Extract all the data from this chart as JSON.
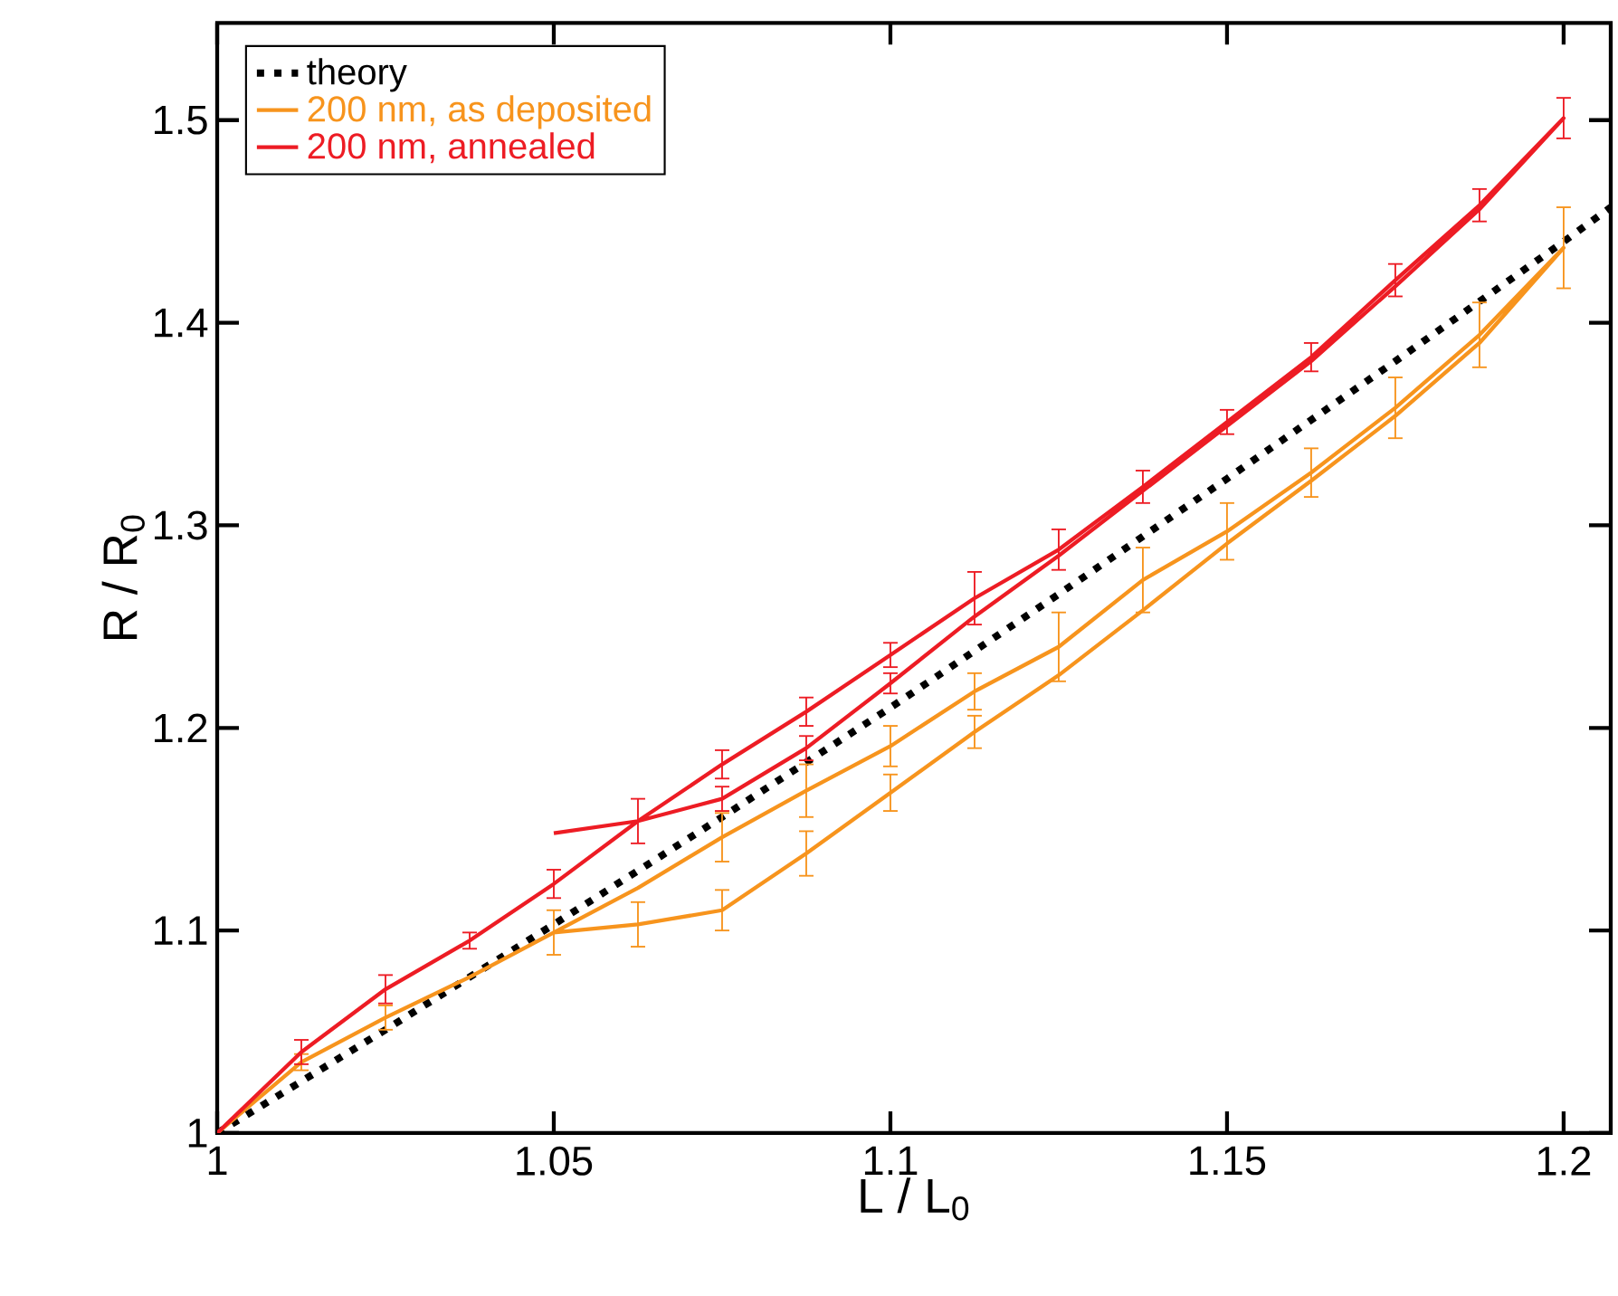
{
  "chart_data": {
    "type": "line",
    "xlabel": "L / L$_{0}$",
    "ylabel": "R / R$_{0}$",
    "xlim": [
      1,
      1.207
    ],
    "ylim": [
      1,
      1.548
    ],
    "xticks": [
      1,
      1.05,
      1.1,
      1.15,
      1.2
    ],
    "yticks": [
      1,
      1.1,
      1.2,
      1.3,
      1.4,
      1.5
    ],
    "grid": false,
    "legend": "top left",
    "marker": "none",
    "series": [
      {
        "name": "theory",
        "color": "#000000",
        "line_style": "dotted",
        "x": [
          1,
          1.025,
          1.05,
          1.075,
          1.1,
          1.125,
          1.15,
          1.175,
          1.2,
          1.207
        ],
        "values": [
          1,
          1.051,
          1.103,
          1.156,
          1.21,
          1.266,
          1.323,
          1.381,
          1.44,
          1.457
        ]
      },
      {
        "name": "200 nm, as deposited",
        "color": "#f7941d",
        "line_style": "solid",
        "x": [
          1,
          1.0125,
          1.025,
          1.0375,
          1.05,
          1.0625,
          1.075,
          1.0875,
          1.1,
          1.1125,
          1.125,
          1.1375,
          1.15,
          1.1625,
          1.175,
          1.1875,
          1.2,
          1.1875,
          1.175,
          1.1625,
          1.15,
          1.1375,
          1.125,
          1.1125,
          1.1,
          1.0875,
          1.075,
          1.0625,
          1.05
        ],
        "values": [
          1,
          1.035,
          1.057,
          1.077,
          1.099,
          1.121,
          1.146,
          1.169,
          1.191,
          1.218,
          1.24,
          1.273,
          1.297,
          1.326,
          1.358,
          1.394,
          1.437,
          1.39,
          1.354,
          1.322,
          1.291,
          1.258,
          1.226,
          1.198,
          1.168,
          1.138,
          1.11,
          1.103,
          1.099
        ],
        "errors": [
          null,
          0.004,
          0.006,
          null,
          0.011,
          null,
          0.012,
          0.013,
          0.01,
          0.009,
          0.017,
          0.016,
          0.014,
          0.012,
          0.015,
          0.016,
          0.02,
          null,
          null,
          null,
          null,
          null,
          null,
          0.008,
          0.009,
          0.011,
          0.01,
          0.011,
          null
        ]
      },
      {
        "name": "200 nm, annealed",
        "color": "#ed1c24",
        "line_style": "solid",
        "x": [
          1,
          1.0125,
          1.025,
          1.0375,
          1.05,
          1.0625,
          1.075,
          1.0875,
          1.1,
          1.1125,
          1.125,
          1.1375,
          1.15,
          1.1625,
          1.175,
          1.1875,
          1.2,
          1.1875,
          1.175,
          1.1625,
          1.15,
          1.1375,
          1.125,
          1.1125,
          1.1,
          1.0875,
          1.075,
          1.0625,
          1.05
        ],
        "values": [
          1,
          1.04,
          1.071,
          1.095,
          1.123,
          1.154,
          1.182,
          1.208,
          1.236,
          1.264,
          1.288,
          1.319,
          1.351,
          1.383,
          1.421,
          1.458,
          1.501,
          1.456,
          1.418,
          1.381,
          1.349,
          1.317,
          1.285,
          1.255,
          1.222,
          1.19,
          1.165,
          1.154,
          1.148
        ],
        "errors": [
          null,
          0.006,
          0.007,
          0.004,
          0.007,
          0.011,
          0.007,
          0.007,
          0.006,
          0.013,
          0.01,
          0.008,
          0.006,
          0.007,
          0.008,
          0.008,
          0.01,
          null,
          null,
          null,
          null,
          null,
          null,
          null,
          0.005,
          0.006,
          0.006,
          null,
          null
        ]
      }
    ]
  }
}
